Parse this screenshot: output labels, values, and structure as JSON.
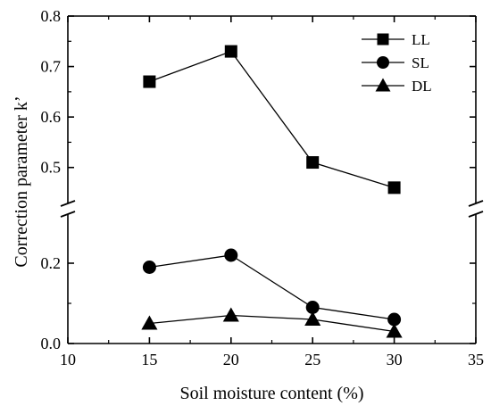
{
  "chart_data": {
    "type": "line",
    "xlabel": "Soil moisture content (%)",
    "ylabel": "Correction parameter k’",
    "x": [
      15,
      20,
      25,
      30
    ],
    "xlim": [
      10,
      35
    ],
    "xticks": [
      "10",
      "15",
      "20",
      "25",
      "30",
      "35"
    ],
    "y_axis_break": true,
    "ylim_lower": [
      0.0,
      0.3
    ],
    "ylim_upper": [
      0.45,
      0.8
    ],
    "yticks_lower": [
      "0.0",
      "0.2"
    ],
    "yticks_upper": [
      "0.5",
      "0.6",
      "0.7",
      "0.8"
    ],
    "legend_position": "top-right",
    "series": [
      {
        "name": "LL",
        "marker": "square",
        "values": [
          0.67,
          0.73,
          0.51,
          0.46
        ]
      },
      {
        "name": "SL",
        "marker": "circle",
        "values": [
          0.19,
          0.22,
          0.09,
          0.06
        ]
      },
      {
        "name": "DL",
        "marker": "triangle",
        "values": [
          0.05,
          0.07,
          0.06,
          0.03
        ]
      }
    ],
    "color": "#000000"
  }
}
